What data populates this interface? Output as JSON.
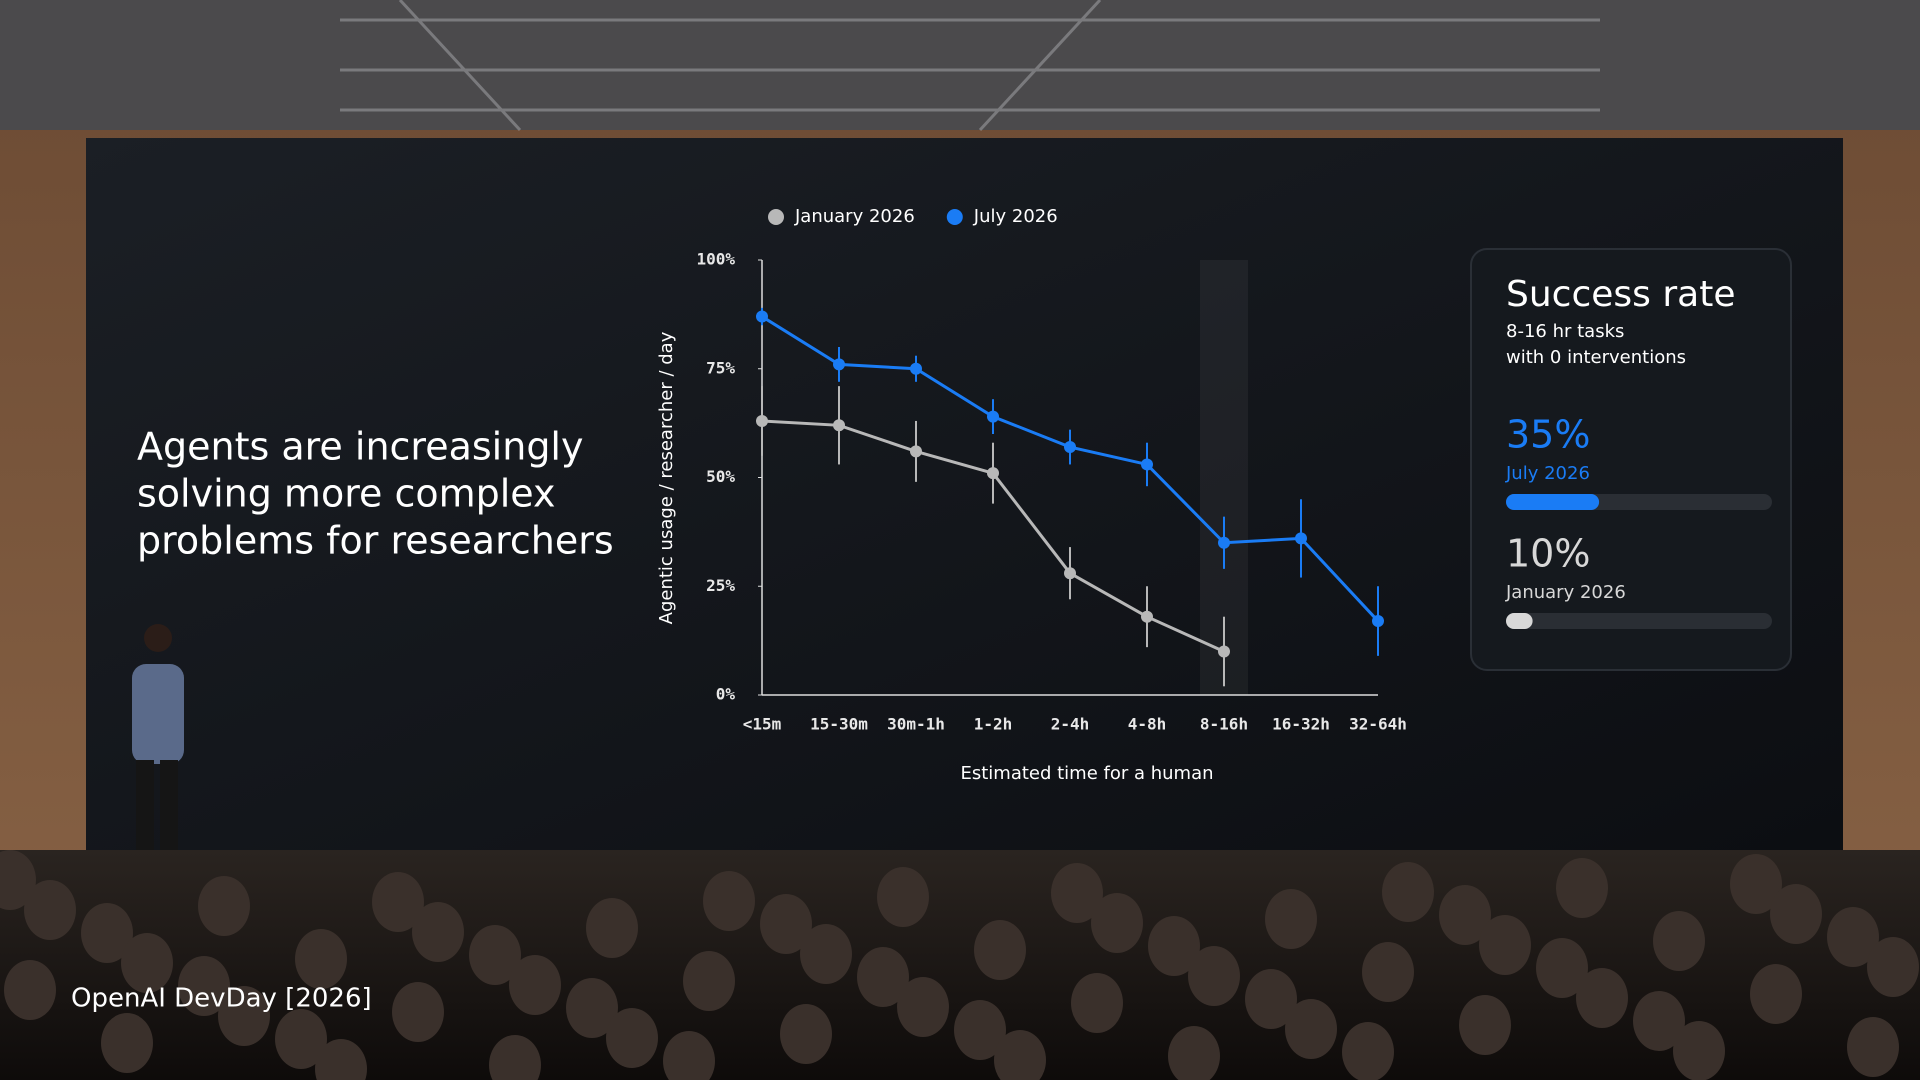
{
  "headline": [
    "Agents are increasingly",
    "solving more complex",
    "problems for researchers"
  ],
  "watermark": "OpenAI DevDay [2026]",
  "chart_data": {
    "type": "line",
    "x_label": "Estimated time for a human",
    "y_label": "Agentic usage / researcher / day",
    "categories": [
      "<15m",
      "15-30m",
      "30m-1h",
      "1-2h",
      "2-4h",
      "4-8h",
      "8-16h",
      "16-32h",
      "32-64h"
    ],
    "series": [
      {
        "name": "January 2026",
        "color": "#b8b8b8",
        "values": [
          63,
          62,
          56,
          51,
          28,
          18,
          10,
          null,
          null
        ],
        "errors": [
          8,
          9,
          7,
          7,
          6,
          7,
          8,
          null,
          null
        ]
      },
      {
        "name": "July 2026",
        "color": "#1a7cf5",
        "values": [
          87,
          76,
          75,
          64,
          57,
          53,
          35,
          36,
          17
        ],
        "errors": [
          2,
          4,
          3,
          4,
          4,
          5,
          6,
          9,
          8
        ]
      }
    ],
    "ylim": [
      0,
      100
    ],
    "yticks": [
      {
        "value": 0,
        "label": "0%"
      },
      {
        "value": 25,
        "label": "25%"
      },
      {
        "value": 50,
        "label": "50%"
      },
      {
        "value": 75,
        "label": "75%"
      },
      {
        "value": 100,
        "label": "100%"
      }
    ],
    "legend": "top",
    "highlight_category": "8-16h"
  },
  "panel": {
    "title": "Success rate",
    "subtitle": [
      "8-16 hr tasks",
      "with 0 interventions"
    ],
    "items": [
      {
        "value": 35,
        "label": "35%",
        "name": "July 2026",
        "color": "#1a7cf5"
      },
      {
        "value": 10,
        "label": "10%",
        "name": "January 2026",
        "color": "#d8d8d8"
      }
    ]
  }
}
